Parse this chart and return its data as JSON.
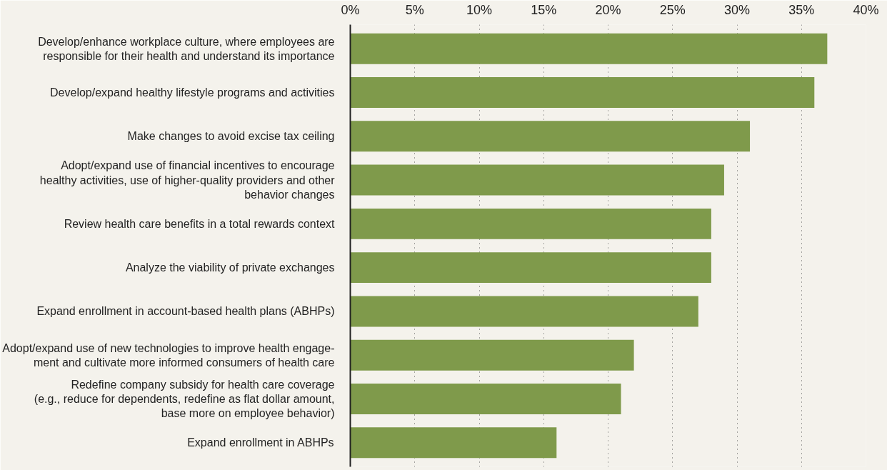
{
  "chart_data": {
    "type": "bar",
    "orientation": "horizontal",
    "categories": [
      "Develop/enhance workplace culture, where employees are\nresponsible for their health and understand its importance",
      "Develop/expand healthy lifestyle programs and activities",
      "Make changes to avoid excise tax ceiling",
      "Adopt/expand use of financial incentives to encourage\nhealthy activities, use of higher-quality providers and other\nbehavior changes",
      "Review health care benefits in a total rewards context",
      "Analyze the viability of private exchanges",
      "Expand enrollment in account-based health plans (ABHPs)",
      "Adopt/expand use of new technologies to improve health engage-\nment and cultivate more informed consumers of health care",
      "Redefine company subsidy for health care coverage\n(e.g., reduce for dependents, redefine as flat dollar amount,\nbase more on employee behavior)",
      "Expand enrollment in ABHPs"
    ],
    "values": [
      37,
      36,
      31,
      29,
      28,
      28,
      27,
      22,
      21,
      16
    ],
    "color": "#7f9a4b",
    "xlim": [
      0,
      40
    ],
    "xticks": [
      {
        "value": 0,
        "label": "0%"
      },
      {
        "value": 5,
        "label": "5%"
      },
      {
        "value": 10,
        "label": "10%"
      },
      {
        "value": 15,
        "label": "15%"
      },
      {
        "value": 20,
        "label": "20%"
      },
      {
        "value": 25,
        "label": "25%"
      },
      {
        "value": 30,
        "label": "30%"
      },
      {
        "value": 35,
        "label": "35%"
      },
      {
        "value": 40,
        "label": "40%"
      }
    ],
    "grid": "x"
  }
}
